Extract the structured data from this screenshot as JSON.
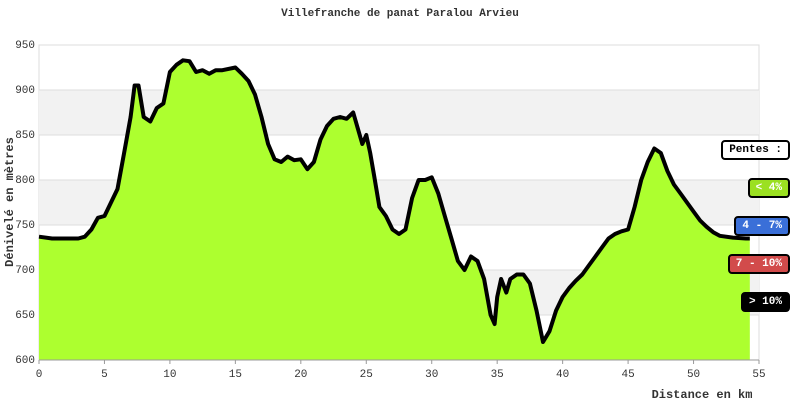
{
  "chart_data": {
    "type": "area",
    "title": "Villefranche de panat Paralou Arvieu",
    "xlabel": "Distance en km",
    "ylabel": "Dénivelé en mètres",
    "x": [
      0,
      1,
      2,
      3,
      3.5,
      4,
      4.5,
      5,
      5.5,
      6,
      6.5,
      7,
      7.3,
      7.6,
      8,
      8.5,
      9,
      9.5,
      10,
      10.5,
      11,
      11.5,
      12,
      12.5,
      13,
      13.5,
      14,
      15,
      15.5,
      16,
      16.5,
      17,
      17.5,
      18,
      18.5,
      19,
      19.5,
      20,
      20.5,
      21,
      21.5,
      22,
      22.5,
      23,
      23.5,
      24,
      24.3,
      24.7,
      25,
      25.3,
      25.6,
      26,
      26.5,
      27,
      27.5,
      28,
      28.5,
      29,
      29.5,
      30,
      30.5,
      31,
      31.5,
      32,
      32.5,
      33,
      33.5,
      34,
      34.5,
      34.8,
      35,
      35.3,
      35.7,
      36,
      36.5,
      37,
      37.5,
      38,
      38.5,
      39,
      39.5,
      40,
      40.5,
      41,
      41.5,
      42,
      42.5,
      43,
      43.5,
      44,
      44.5,
      45,
      45.5,
      46,
      46.5,
      47,
      47.5,
      48,
      48.5,
      49,
      49.5,
      50,
      50.5,
      51,
      51.5,
      52,
      53,
      54,
      54.3
    ],
    "values": [
      737,
      735,
      735,
      735,
      737,
      745,
      758,
      760,
      775,
      790,
      830,
      870,
      905,
      905,
      870,
      865,
      880,
      885,
      920,
      928,
      933,
      932,
      920,
      922,
      918,
      922,
      922,
      925,
      918,
      910,
      895,
      870,
      840,
      823,
      820,
      826,
      822,
      823,
      812,
      820,
      845,
      860,
      868,
      870,
      868,
      875,
      860,
      840,
      850,
      830,
      805,
      770,
      760,
      745,
      740,
      745,
      780,
      800,
      800,
      803,
      785,
      760,
      735,
      710,
      700,
      715,
      710,
      690,
      650,
      640,
      670,
      690,
      675,
      690,
      695,
      695,
      685,
      655,
      620,
      632,
      655,
      670,
      680,
      688,
      695,
      705,
      715,
      725,
      735,
      740,
      743,
      745,
      770,
      800,
      820,
      835,
      830,
      810,
      795,
      785,
      775,
      765,
      755,
      748,
      742,
      738,
      736,
      735,
      735
    ],
    "color": "#adff2f",
    "line_color": "#000000",
    "xlim": [
      0,
      55
    ],
    "ylim": [
      600,
      950
    ],
    "xticks": [
      0,
      5,
      10,
      15,
      20,
      25,
      30,
      35,
      40,
      45,
      50,
      55
    ],
    "yticks": [
      600,
      650,
      700,
      750,
      800,
      850,
      900,
      950
    ],
    "grid": true,
    "legend": {
      "title": "Pentes :",
      "items": [
        {
          "label": "< 4%",
          "color": "#9be021"
        },
        {
          "label": "4 - 7%",
          "color": "#3a6fd8"
        },
        {
          "label": "7 - 10%",
          "color": "#d24b4b"
        },
        {
          "label": "> 10%",
          "color": "#000000"
        }
      ]
    }
  }
}
